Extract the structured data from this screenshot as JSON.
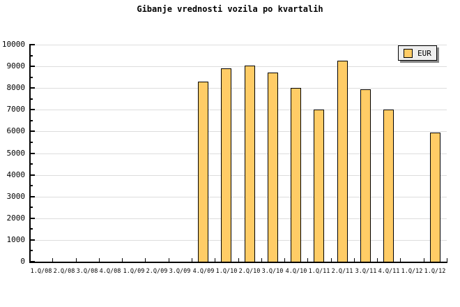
{
  "window": {
    "background_color": "#FFFFFF"
  },
  "chart_data": {
    "type": "bar",
    "title": "Gibanje vrednosti vozila po kvartalih",
    "xlabel": "",
    "ylabel": "",
    "categories": [
      "1.Q/08",
      "2.Q/08",
      "3.Q/08",
      "4.Q/08",
      "1.Q/09",
      "2.Q/09",
      "3.Q/09",
      "4.Q/09",
      "1.Q/10",
      "2.Q/10",
      "3.Q/10",
      "4.Q/10",
      "1.Q/11",
      "2.Q/11",
      "3.Q/11",
      "4.Q/11",
      "1.Q/12",
      "1.Q/12"
    ],
    "series": [
      {
        "name": "EUR",
        "values": [
          null,
          null,
          null,
          null,
          null,
          null,
          null,
          8300,
          8900,
          9050,
          8700,
          8000,
          7000,
          9250,
          7950,
          7000,
          null,
          5950
        ],
        "color": "#FFCC66",
        "border_color": "#000000"
      }
    ],
    "ylim": [
      0,
      10000
    ],
    "y_tick_step": 1000,
    "y_minor_tick_step": 500,
    "y_tick_labels": [
      "0",
      "1000",
      "2000",
      "3000",
      "4000",
      "5000",
      "6000",
      "7000",
      "8000",
      "9000",
      "10000"
    ],
    "grid": "horizontal-major",
    "grid_color": "#DDDDDD",
    "axis_color": "#000000",
    "text_color": "#000000",
    "legend": {
      "position": "top-right",
      "background_color": "#EEEEEE",
      "border_color": "#000000",
      "shadow_color": "#888888",
      "items": [
        {
          "label": "EUR",
          "color": "#FFCC66"
        }
      ]
    }
  }
}
